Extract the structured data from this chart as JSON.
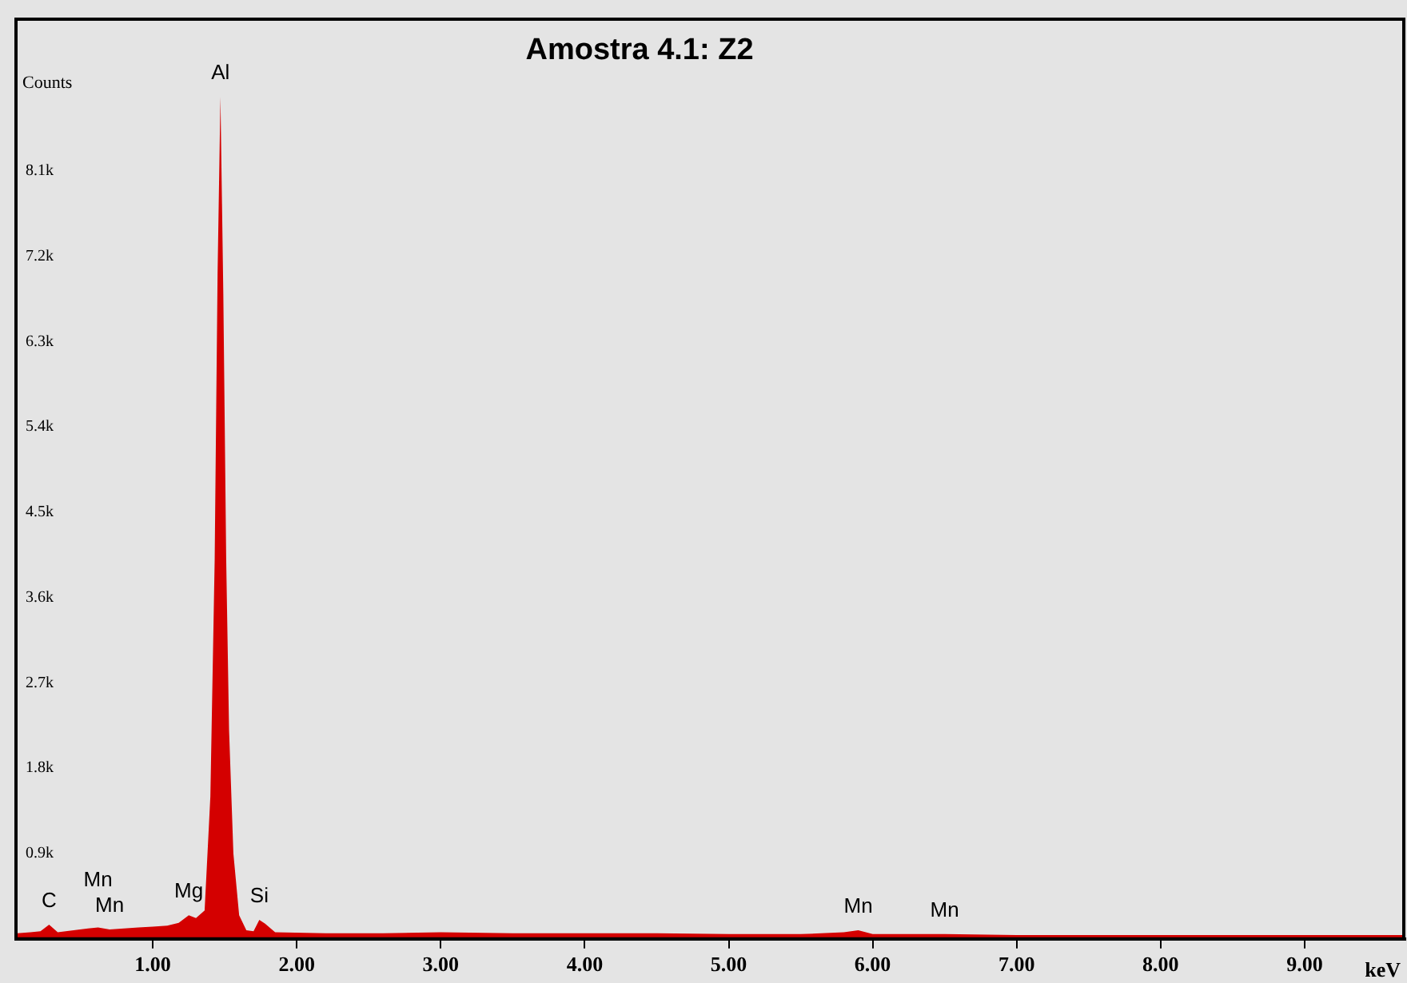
{
  "chart_data": {
    "type": "area",
    "title": "Amostra 4.1: Z2",
    "xlabel": "keV",
    "ylabel": "Counts",
    "x": [
      0.06,
      0.15,
      0.22,
      0.28,
      0.34,
      0.45,
      0.55,
      0.62,
      0.7,
      0.8,
      0.9,
      1.0,
      1.1,
      1.18,
      1.25,
      1.3,
      1.36,
      1.4,
      1.43,
      1.45,
      1.47,
      1.49,
      1.51,
      1.53,
      1.56,
      1.6,
      1.65,
      1.7,
      1.74,
      1.78,
      1.85,
      2.2,
      2.6,
      3.0,
      3.5,
      4.0,
      4.5,
      5.0,
      5.5,
      5.8,
      5.9,
      6.0,
      6.5,
      7.0,
      8.0,
      9.0,
      9.7
    ],
    "series": [
      {
        "color": "#d40000",
        "values": [
          60,
          70,
          80,
          150,
          70,
          90,
          110,
          120,
          100,
          110,
          120,
          130,
          140,
          170,
          250,
          220,
          300,
          1500,
          4000,
          7000,
          8880,
          6800,
          4000,
          2200,
          900,
          250,
          90,
          80,
          200,
          160,
          70,
          60,
          60,
          70,
          60,
          60,
          60,
          50,
          50,
          70,
          90,
          50,
          50,
          40,
          40,
          40,
          40
        ]
      }
    ],
    "xlim": [
      0.05,
      9.7
    ],
    "ylim": [
      0,
      9700
    ],
    "xticks": [
      {
        "value": 1,
        "label": "1.00"
      },
      {
        "value": 2,
        "label": "2.00"
      },
      {
        "value": 3,
        "label": "3.00"
      },
      {
        "value": 4,
        "label": "4.00"
      },
      {
        "value": 5,
        "label": "5.00"
      },
      {
        "value": 6,
        "label": "6.00"
      },
      {
        "value": 7,
        "label": "7.00"
      },
      {
        "value": 8,
        "label": "8.00"
      },
      {
        "value": 9,
        "label": "9.00"
      }
    ],
    "yticks": [
      {
        "value": 900,
        "label": "0.9k"
      },
      {
        "value": 1800,
        "label": "1.8k"
      },
      {
        "value": 2700,
        "label": "2.7k"
      },
      {
        "value": 3600,
        "label": "3.6k"
      },
      {
        "value": 4500,
        "label": "4.5k"
      },
      {
        "value": 5400,
        "label": "5.4k"
      },
      {
        "value": 6300,
        "label": "6.3k"
      },
      {
        "value": 7200,
        "label": "7.2k"
      },
      {
        "value": 8100,
        "label": "8.1k"
      }
    ],
    "annotations": [
      {
        "text": "C",
        "x": 0.28,
        "y": 150
      },
      {
        "text": "Mn",
        "x": 0.7,
        "y": 100
      },
      {
        "text": "Mn",
        "x": 0.62,
        "y": 120
      },
      {
        "text": "Mg",
        "x": 1.25,
        "y": 250
      },
      {
        "text": "Al",
        "x": 1.47,
        "y": 8880
      },
      {
        "text": "Si",
        "x": 1.74,
        "y": 200
      },
      {
        "text": "Mn",
        "x": 5.9,
        "y": 90
      },
      {
        "text": "Mn",
        "x": 6.5,
        "y": 50
      }
    ],
    "grid": false,
    "legend": false,
    "marker": "none"
  }
}
